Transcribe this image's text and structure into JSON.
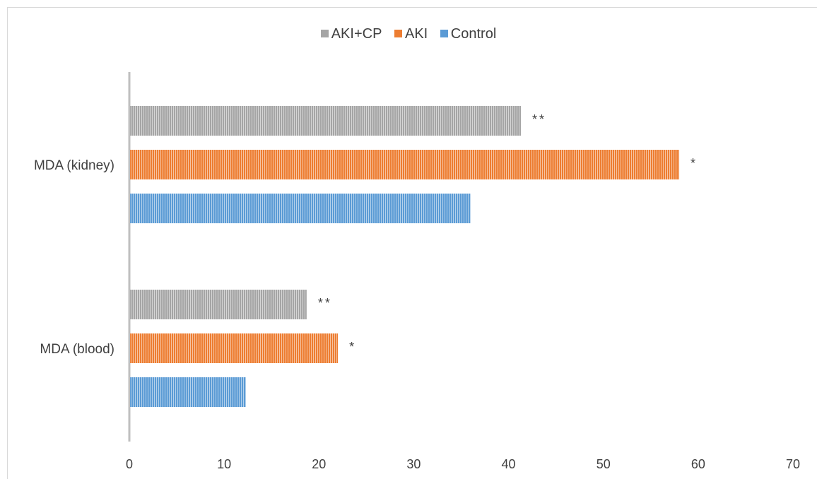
{
  "chart_data": {
    "type": "bar",
    "orientation": "horizontal",
    "categories": [
      "MDA (blood)",
      "MDA (kidney)"
    ],
    "series": [
      {
        "name": "Control",
        "color": "#5b9bd5",
        "values": [
          12.3,
          36.0
        ]
      },
      {
        "name": "AKI",
        "color": "#ed7d31",
        "values": [
          22.0,
          58.0
        ]
      },
      {
        "name": "AKI+CP",
        "color": "#a5a5a5",
        "values": [
          18.7,
          41.3
        ]
      }
    ],
    "annotations": {
      "Control": [
        "",
        ""
      ],
      "AKI": [
        "*",
        "*"
      ],
      "AKI+CP": [
        "**",
        "**"
      ]
    },
    "xlim": [
      0,
      70
    ],
    "xticks": [
      0,
      10,
      20,
      30,
      40,
      50,
      60,
      70
    ],
    "legend_order": [
      "AKI+CP",
      "AKI",
      "Control"
    ],
    "legend_position": "top",
    "grid": false,
    "title": "",
    "xlabel": "",
    "ylabel": ""
  }
}
